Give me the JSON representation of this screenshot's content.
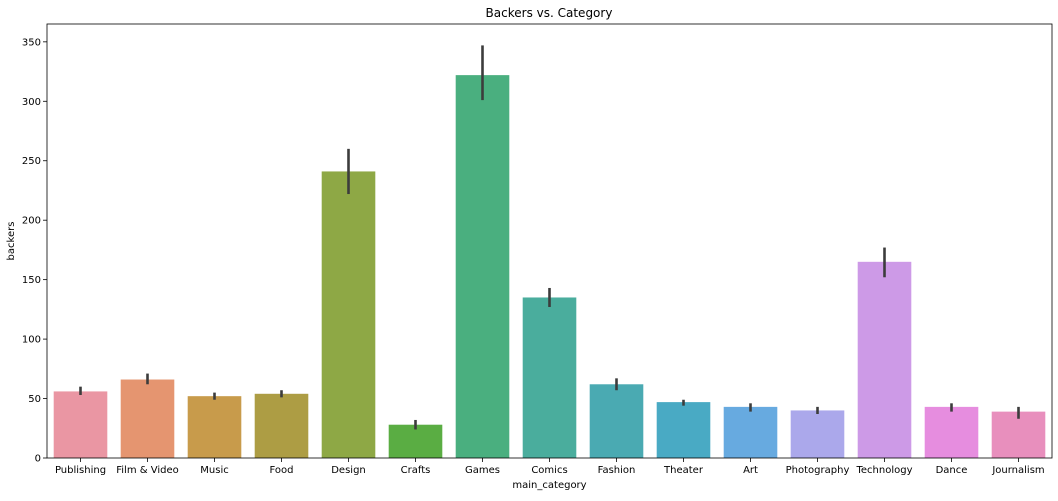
{
  "chart_data": {
    "type": "bar",
    "title": "Backers vs. Category",
    "xlabel": "main_category",
    "ylabel": "backers",
    "ylim": [
      0,
      365
    ],
    "yticks": [
      0,
      50,
      100,
      150,
      200,
      250,
      300,
      350
    ],
    "grid": false,
    "legend": "none",
    "categories": [
      "Publishing",
      "Film & Video",
      "Music",
      "Food",
      "Design",
      "Crafts",
      "Games",
      "Comics",
      "Fashion",
      "Theater",
      "Art",
      "Photography",
      "Technology",
      "Dance",
      "Journalism"
    ],
    "values": [
      56,
      66,
      52,
      54,
      241,
      28,
      322,
      135,
      62,
      47,
      43,
      40,
      165,
      43,
      39
    ],
    "error_low": [
      53,
      62,
      49,
      51,
      222,
      24,
      301,
      127,
      57,
      44,
      39,
      37,
      152,
      39,
      33
    ],
    "error_high": [
      60,
      71,
      55,
      57,
      260,
      32,
      347,
      143,
      67,
      49,
      46,
      43,
      177,
      46,
      43
    ],
    "colors": [
      "#ea96a3",
      "#e59570",
      "#c89b4b",
      "#ad9d44",
      "#8ea845",
      "#5aad43",
      "#4aaf7f",
      "#4aad9d",
      "#4aaab2",
      "#49aac4",
      "#67aae0",
      "#aba8eb",
      "#cd9ae7",
      "#e68ddf",
      "#e88fbd"
    ],
    "error_color": "#3c3c3c"
  }
}
